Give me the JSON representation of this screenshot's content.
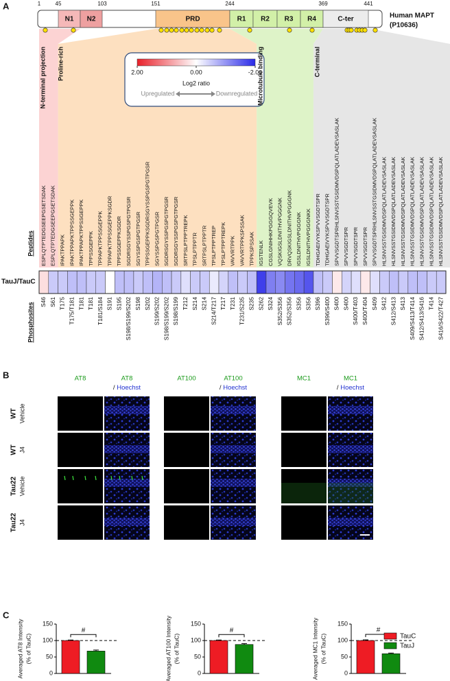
{
  "panel_a": {
    "label": "A",
    "residues": [
      1,
      45,
      103,
      151,
      244,
      369,
      441
    ],
    "domains": [
      "N1",
      "N2",
      "PRD",
      "R1",
      "R2",
      "R3",
      "R4",
      "C-ter"
    ],
    "protein": [
      "Human MAPT",
      "(P10636)"
    ],
    "regions": [
      "N-terminal projection",
      "Proline-rich",
      "Microtubule binding",
      "C-terminal"
    ],
    "legend": {
      "title": "Log2 ratio",
      "up": "Upregulated",
      "down": "Downregulated",
      "colorbar_lim": [
        2,
        -2
      ],
      "colorbar_ticks": [
        {
          "value": 2,
          "label": "2.00"
        },
        {
          "value": 0,
          "label": "0.00"
        },
        {
          "value": -2,
          "label": "-2.00"
        }
      ],
      "colors": [
        "#e8202a",
        "#ffffff",
        "#2a2ae8"
      ]
    },
    "peptides_label": "Peptides",
    "ratio_label": "TauJ/TauC",
    "sites_label": "Phosphosites",
    "peptides": [
      "ESPLQTPTEDGSEEPGSETSDAK",
      "ESPLQTPTEDGSEEPGSETSDAK",
      "IPAKTPPAPK",
      "IPAKTPPAPKTPPSSGEPPK",
      "IPAKTPPAPKTPPSSGEPPK",
      "TPPSSGEPPK",
      "TPPAPKTPPSSGEPPK",
      "TPPAPKTPPSSGEPPKSGDR",
      "TPPSSGEPPKSGDR",
      "SGDRSGYSSPGSPGTPGSR",
      "SGYSSPGSPGTPGSR",
      "TPPSSGEPPKSGDRSGYSSPGSPGTPGSR",
      "SGYSSPGSPGTPGSR",
      "SGDRSGYSSPGSPGTPGSR",
      "SGDRSGYSSPGSPGTPGSR",
      "SRTPSLPTPPTREPK",
      "TPSLPTPPTR",
      "SRTPSLPTPPTR",
      "TPSLPTPPTREP",
      "TPSLPTPPTREPK",
      "VAVVRTPPK",
      "VAVVRTPPKSPSSAK",
      "TPPKSPSSAK",
      "IGSTENLK",
      "CGSLGNIHHKPGGGQVEVK",
      "VQSKIGSLDNITHVPGGGNK",
      "DRVQSKIGSLDNITHVPGGGNK",
      "IGSLDNITHVPGGGNK",
      "IGSLDNITHVPGGGNKK",
      "TDHGAEIVYKSPVVSGDTSPR",
      "TDHGAEIVYKSPVVSGDTSPR",
      "SPVVSGDTSPRHLSNVSSTGSIDMVDSPQLATLADEVSASLAK",
      "SPVVSGDTSPR",
      "SPVVSGDTSPR",
      "SPVVSGDTSPR",
      "SPVVSGDTSPRHLSNVSSTGSIDMVDSPQLATLADEVSASLAK",
      "HLSNVSSTGSIDMVDSPQLATLADEVSASLAK",
      "HLSNVSSTGSIDMVDSPQLATLADEVSASLAK",
      "HLSNVSSTGSIDMVDSPQLATLADEVSASLAK",
      "HLSNVSSTGSIDMVDSPQLATLADEVSASLAK",
      "HLSNVSSTGSIDMVDSPQLATLADEVSASLAK",
      "HLSNVSSTGSIDMVDSPQLATLADEVSASLAK",
      "HLSNVSSTGSIDMVDSPQLATLADEVSASLAK"
    ],
    "sites": [
      "S46",
      "S61",
      "T175",
      "T175/T181",
      "T181",
      "T181",
      "T181/S184",
      "S191",
      "S195",
      "S198/S199/S202",
      "S198",
      "S202",
      "S199/S202",
      "S198/S199/S202",
      "S198/S199",
      "T212",
      "S214",
      "S214",
      "S214/T217",
      "T217",
      "T231",
      "T231/S235",
      "S235",
      "S262",
      "S324",
      "S352/S356",
      "S352/S356",
      "S356",
      "S356",
      "S396",
      "S396/S400",
      "S400",
      "S400",
      "S400/T403",
      "S400/T404",
      "S409",
      "S412",
      "S412/S413",
      "S413",
      "S409/S413/T414",
      "S412/S413/S416",
      "T414",
      "S416/S422/T427"
    ],
    "log2_ratio": [
      0.3,
      -0.5,
      -0.5,
      -0.6,
      -0.6,
      -0.5,
      -0.5,
      0,
      -0.6,
      -0.6,
      -0.5,
      -0.6,
      -0.7,
      -0.6,
      -0.5,
      -0.3,
      -0.5,
      -0.5,
      -0.2,
      -0.4,
      -0.6,
      -0.5,
      -0.6,
      -1.8,
      -1.2,
      -1.1,
      -1.3,
      -1.4,
      -1.6,
      -0.6,
      -0.5,
      0.2,
      -0.4,
      -0.3,
      0.2,
      -0.3,
      -0.5,
      -0.6,
      -0.5,
      -0.6,
      -0.6,
      -0.5,
      -0.5
    ]
  },
  "panel_b": {
    "label": "B",
    "columns": [
      {
        "top": "AT8"
      },
      {
        "top": "AT8",
        "sep": "/",
        "stain": "Hoechst"
      },
      {
        "top": "AT100"
      },
      {
        "top": "AT100",
        "sep": "/",
        "stain": "Hoechst"
      },
      {
        "top": "MC1"
      },
      {
        "top": "MC1",
        "sep": "/",
        "stain": "Hoechst"
      }
    ],
    "rows": [
      [
        "WT",
        "Vehicle"
      ],
      [
        "WT",
        "J4"
      ],
      [
        "Tau22",
        "Vehicle"
      ],
      [
        "Tau22",
        "J4"
      ]
    ]
  },
  "panel_c": {
    "label": "C",
    "series": [
      {
        "name": "TauC",
        "color": "#ee1c24"
      },
      {
        "name": "TauJ",
        "color": "#108a10"
      }
    ],
    "charts": [
      {
        "type": "bar",
        "y_label": [
          "Averaged AT8 Intensity",
          "(% of TauC)"
        ],
        "ylim": [
          0,
          150
        ],
        "yticks": [
          0,
          50,
          100,
          150
        ],
        "values": [
          100,
          68
        ],
        "errors": [
          1.5,
          3
        ],
        "annotation": "#",
        "reference": 100
      },
      {
        "type": "bar",
        "y_label": [
          "Averaged AT100 Intensity",
          "(% of TauC)"
        ],
        "ylim": [
          0,
          150
        ],
        "yticks": [
          0,
          50,
          100,
          150
        ],
        "values": [
          100,
          88
        ],
        "errors": [
          1.5,
          3
        ],
        "annotation": "#",
        "reference": 100
      },
      {
        "type": "bar",
        "y_label": [
          "Averaged MC1 Intensity",
          "(% of TauC)"
        ],
        "ylim": [
          0,
          150
        ],
        "yticks": [
          0,
          50,
          100,
          150
        ],
        "values": [
          100,
          60
        ],
        "errors": [
          2,
          2
        ],
        "annotation": "#",
        "reference": 100
      }
    ]
  }
}
